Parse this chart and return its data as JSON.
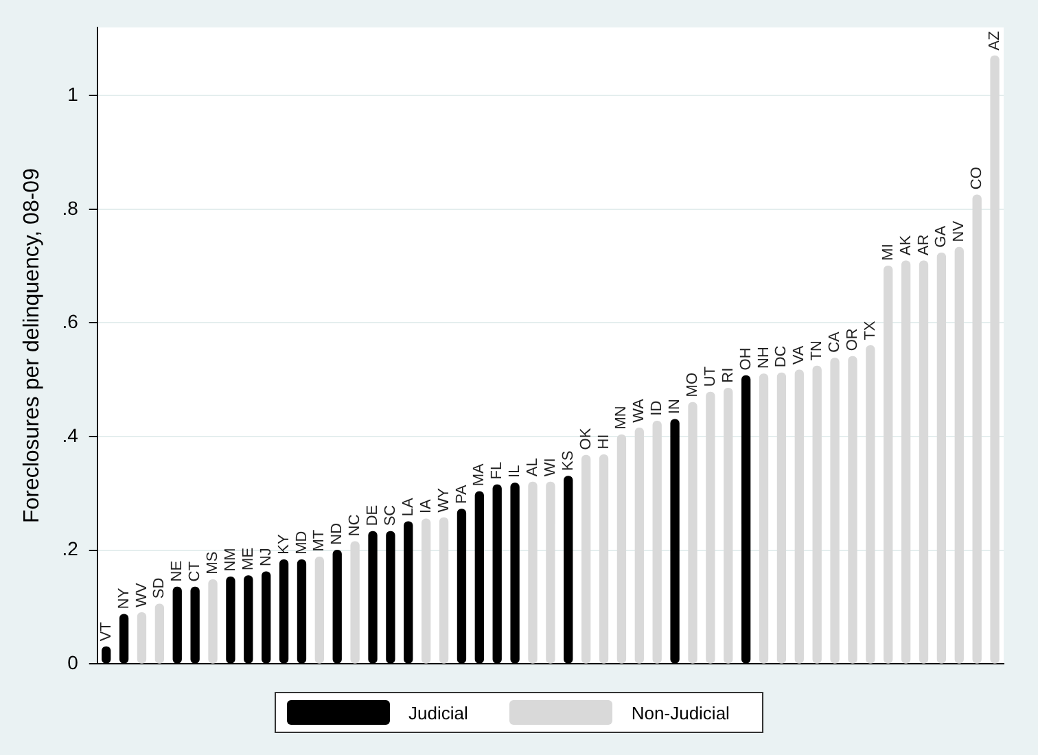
{
  "chart_data": {
    "type": "bar",
    "ylabel": "Foreclosures per delinquency, 08-09",
    "categories": [
      "VT",
      "NY",
      "WV",
      "SD",
      "NE",
      "CT",
      "MS",
      "NM",
      "ME",
      "NJ",
      "KY",
      "MD",
      "MT",
      "ND",
      "NC",
      "DE",
      "SC",
      "LA",
      "IA",
      "WY",
      "PA",
      "MA",
      "FL",
      "IL",
      "AL",
      "WI",
      "KS",
      "OK",
      "HI",
      "MN",
      "WA",
      "ID",
      "IN",
      "MO",
      "UT",
      "RI",
      "OH",
      "NH",
      "DC",
      "VA",
      "TN",
      "CA",
      "OR",
      "TX",
      "MI",
      "AK",
      "AR",
      "GA",
      "NV",
      "CO",
      "AZ"
    ],
    "series": [
      {
        "name": "Judicial",
        "color": "#000000",
        "values": [
          0.03,
          0.087,
          null,
          null,
          0.135,
          0.135,
          null,
          0.153,
          0.155,
          0.162,
          0.183,
          0.183,
          null,
          0.2,
          null,
          0.233,
          0.233,
          0.25,
          null,
          null,
          0.272,
          0.303,
          0.315,
          0.318,
          null,
          null,
          0.33,
          null,
          null,
          null,
          null,
          null,
          0.43,
          null,
          null,
          null,
          0.507,
          null,
          null,
          null,
          null,
          null,
          null,
          null,
          null,
          null,
          null,
          null,
          null,
          null,
          null
        ]
      },
      {
        "name": "Non-Judicial",
        "color": "#d9d9d9",
        "values": [
          null,
          null,
          0.09,
          0.105,
          null,
          null,
          0.148,
          null,
          null,
          null,
          null,
          null,
          0.188,
          null,
          0.215,
          null,
          null,
          null,
          0.255,
          0.257,
          null,
          null,
          null,
          null,
          0.32,
          0.32,
          null,
          0.367,
          0.368,
          0.403,
          0.415,
          0.427,
          null,
          0.46,
          0.478,
          0.485,
          null,
          0.51,
          0.512,
          0.517,
          0.524,
          0.538,
          0.541,
          0.56,
          0.7,
          0.709,
          0.709,
          0.723,
          0.733,
          0.825,
          1.07
        ]
      }
    ],
    "ylim": [
      0,
      1.12
    ],
    "yticks": [
      0,
      {
        "value": 0.2,
        "label": ".2"
      },
      {
        "value": 0.4,
        "label": ".4"
      },
      {
        "value": 0.6,
        "label": ".6"
      },
      {
        "value": 0.8,
        "label": ".8"
      },
      1
    ],
    "grid": "y",
    "legend": "bottom"
  }
}
